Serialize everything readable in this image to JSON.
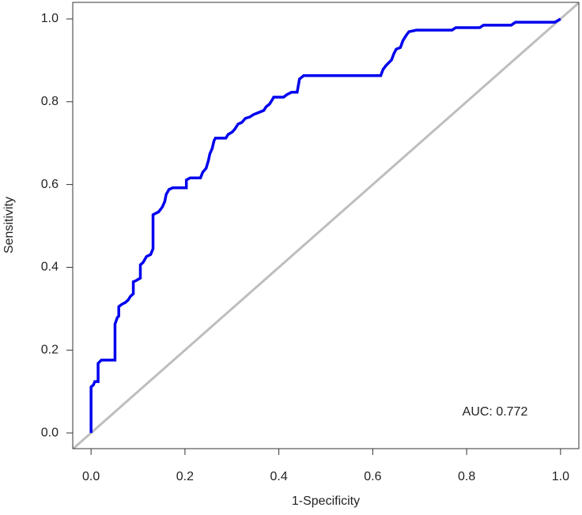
{
  "chart_data": {
    "type": "line",
    "x_label": "1-Specificity",
    "y_label": "Sensitivity",
    "annotation": "AUC: 0.772",
    "color": "#0000ee",
    "x": [
      0,
      0,
      0.005,
      0.008,
      0.015,
      0.015,
      0.022,
      0.051,
      0.051,
      0.056,
      0.059,
      0.059,
      0.066,
      0.073,
      0.079,
      0.084,
      0.09,
      0.09,
      0.096,
      0.105,
      0.105,
      0.111,
      0.118,
      0.127,
      0.132,
      0.132,
      0.144,
      0.152,
      0.157,
      0.16,
      0.166,
      0.174,
      0.203,
      0.203,
      0.211,
      0.233,
      0.238,
      0.245,
      0.25,
      0.253,
      0.258,
      0.262,
      0.265,
      0.287,
      0.292,
      0.301,
      0.307,
      0.313,
      0.321,
      0.329,
      0.338,
      0.346,
      0.355,
      0.368,
      0.373,
      0.38,
      0.385,
      0.389,
      0.41,
      0.417,
      0.427,
      0.439,
      0.444,
      0.453,
      0.617,
      0.622,
      0.628,
      0.633,
      0.64,
      0.645,
      0.65,
      0.659,
      0.664,
      0.671,
      0.677,
      0.693,
      0.769,
      0.777,
      0.828,
      0.836,
      0.895,
      0.904,
      0.988,
      1
    ],
    "values": [
      0,
      0.111,
      0.116,
      0.124,
      0.124,
      0.168,
      0.176,
      0.176,
      0.263,
      0.279,
      0.282,
      0.305,
      0.311,
      0.315,
      0.321,
      0.33,
      0.336,
      0.365,
      0.368,
      0.374,
      0.406,
      0.412,
      0.426,
      0.431,
      0.445,
      0.527,
      0.534,
      0.546,
      0.559,
      0.576,
      0.588,
      0.592,
      0.592,
      0.611,
      0.616,
      0.616,
      0.63,
      0.639,
      0.658,
      0.674,
      0.687,
      0.706,
      0.712,
      0.712,
      0.721,
      0.727,
      0.735,
      0.746,
      0.75,
      0.76,
      0.763,
      0.769,
      0.773,
      0.779,
      0.788,
      0.794,
      0.803,
      0.811,
      0.811,
      0.817,
      0.823,
      0.823,
      0.855,
      0.863,
      0.863,
      0.878,
      0.887,
      0.893,
      0.901,
      0.916,
      0.927,
      0.931,
      0.947,
      0.96,
      0.969,
      0.973,
      0.973,
      0.979,
      0.979,
      0.985,
      0.985,
      0.992,
      0.992,
      1
    ],
    "xlim": [
      -0.039,
      1.039
    ],
    "ylim": [
      -0.038,
      1.04
    ],
    "xticks": [
      {
        "value": 0,
        "label": "0.0"
      },
      0.2,
      0.4,
      0.6,
      0.8,
      {
        "value": 1,
        "label": "1.0"
      }
    ],
    "yticks": [
      {
        "value": 0,
        "label": "0.0"
      },
      0.2,
      0.4,
      0.6,
      0.8,
      {
        "value": 1,
        "label": "1.0"
      }
    ]
  }
}
